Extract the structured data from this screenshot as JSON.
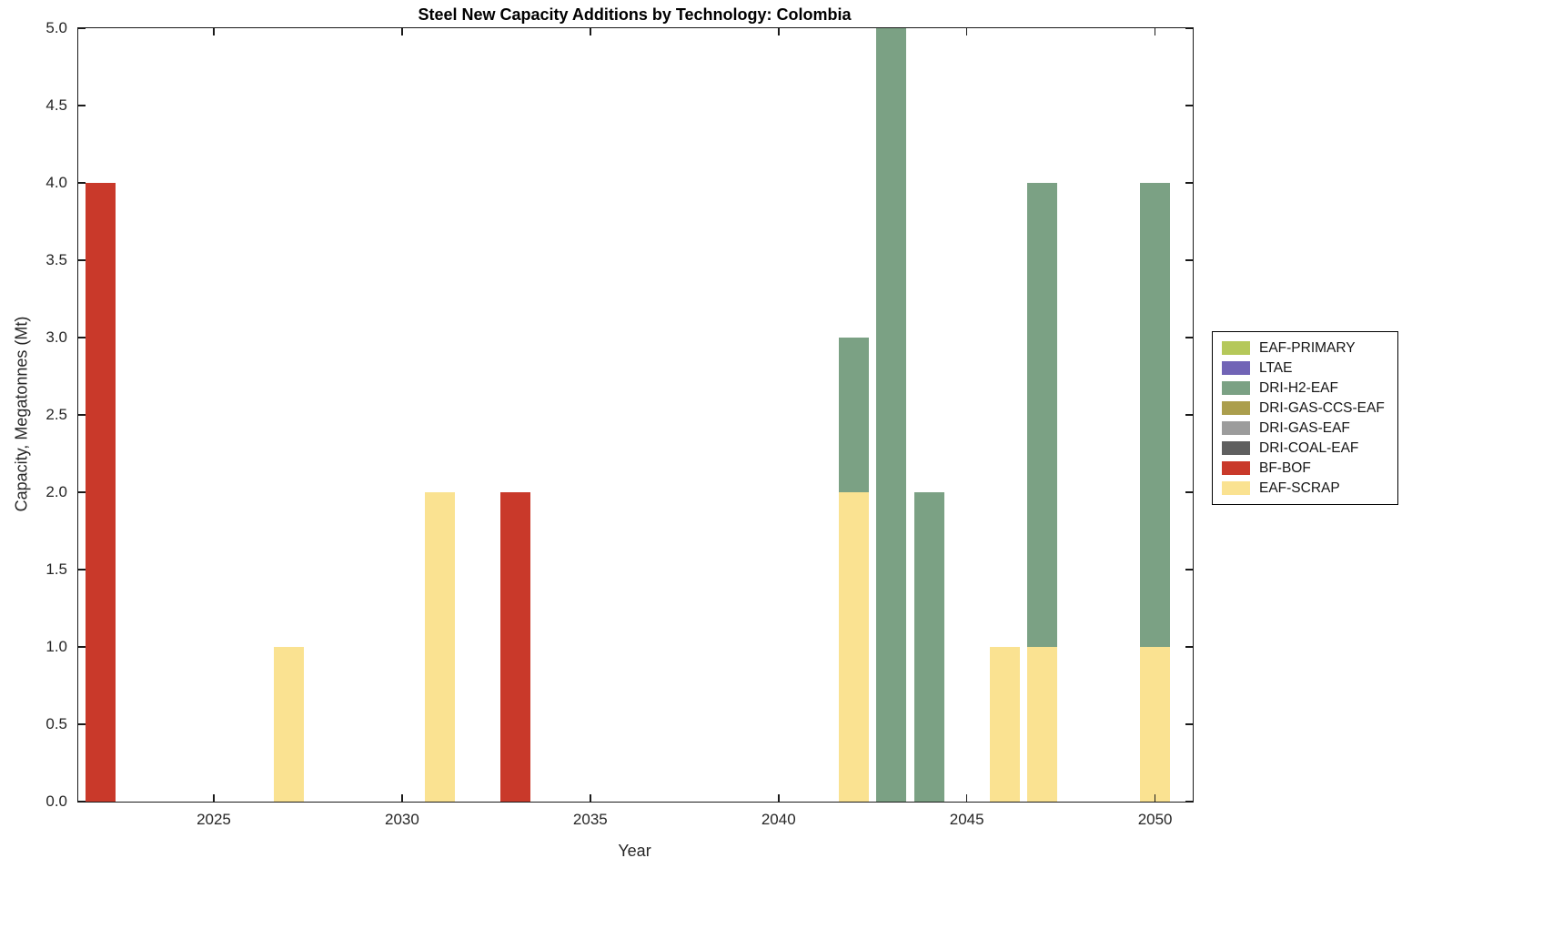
{
  "chart_data": {
    "type": "bar",
    "stacked": true,
    "title": "Steel New Capacity Additions by Technology: Colombia",
    "xlabel": "Year",
    "ylabel": "Capacity, Megatonnes (Mt)",
    "xlim": [
      2021.4,
      2051.0
    ],
    "ylim": [
      0,
      5
    ],
    "xticks": [
      2025,
      2030,
      2035,
      2040,
      2045,
      2050
    ],
    "ytick_step": 0.5,
    "ytick_decimals": 1,
    "grid": false,
    "legend_position": "right-outside",
    "bar_width_years": 0.8,
    "legend": [
      {
        "label": "EAF-PRIMARY",
        "color": "#b5c85a"
      },
      {
        "label": "LTAE",
        "color": "#7164b6"
      },
      {
        "label": "DRI-H2-EAF",
        "color": "#7ba184"
      },
      {
        "label": "DRI-GAS-CCS-EAF",
        "color": "#ab9e4d"
      },
      {
        "label": "DRI-GAS-EAF",
        "color": "#9c9c9c"
      },
      {
        "label": "DRI-COAL-EAF",
        "color": "#5f5f5f"
      },
      {
        "label": "BF-BOF",
        "color": "#c9392a"
      },
      {
        "label": "EAF-SCRAP",
        "color": "#fae291"
      }
    ],
    "series": [
      {
        "name": "EAF-SCRAP",
        "color": "#fae291",
        "points": [
          {
            "x": 2027,
            "y": 1
          },
          {
            "x": 2031,
            "y": 2
          },
          {
            "x": 2042,
            "y": 2
          },
          {
            "x": 2046,
            "y": 1
          },
          {
            "x": 2047,
            "y": 1
          },
          {
            "x": 2050,
            "y": 1
          }
        ]
      },
      {
        "name": "BF-BOF",
        "color": "#c9392a",
        "points": [
          {
            "x": 2022,
            "y": 4
          },
          {
            "x": 2033,
            "y": 2
          }
        ]
      },
      {
        "name": "DRI-H2-EAF",
        "color": "#7ba184",
        "points": [
          {
            "x": 2042,
            "y": 1
          },
          {
            "x": 2043,
            "y": 5
          },
          {
            "x": 2044,
            "y": 2
          },
          {
            "x": 2047,
            "y": 3
          },
          {
            "x": 2050,
            "y": 3
          }
        ]
      }
    ]
  }
}
